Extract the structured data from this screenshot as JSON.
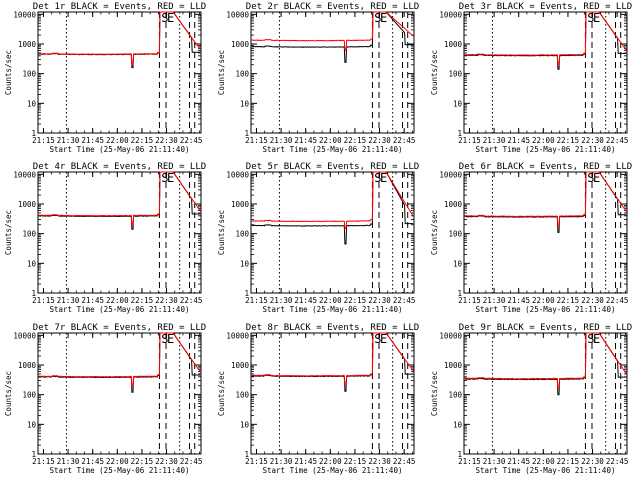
{
  "chart_data": [
    {
      "type": "line",
      "title": "Det 1r BLACK = Events, RED = LLD",
      "xlabel": "Start Time (25-May-06 21:11:40)",
      "ylabel": "Counts/sec",
      "x_ticks": [
        "21:15",
        "21:30",
        "21:45",
        "22:00",
        "22:15",
        "22:30",
        "22:45"
      ],
      "y_ticks": [
        "1",
        "10",
        "100",
        "1000",
        "10000"
      ],
      "xlim": [
        "21:11:40",
        "22:51:00"
      ],
      "ylim": [
        1,
        12000
      ],
      "y_scale": "log",
      "annotations": [
        "S",
        "E"
      ],
      "series": [
        {
          "color": "#000000",
          "level": 460,
          "dip": 160
        },
        {
          "color": "#ff0000",
          "level": 470,
          "dip": 200
        }
      ]
    },
    {
      "type": "line",
      "title": "Det 2r BLACK = Events, RED = LLD",
      "xlabel": "Start Time (25-May-06 21:11:40)",
      "ylabel": "Counts/sec",
      "x_ticks": [
        "21:15",
        "21:30",
        "21:45",
        "22:00",
        "22:15",
        "22:30",
        "22:45"
      ],
      "y_ticks": [
        "1",
        "10",
        "100",
        "1000",
        "10000"
      ],
      "xlim": [
        "21:11:40",
        "22:51:00"
      ],
      "ylim": [
        1,
        12000
      ],
      "y_scale": "log",
      "annotations": [
        "S",
        "E"
      ],
      "series": [
        {
          "color": "#000000",
          "level": 820,
          "dip": 240
        },
        {
          "color": "#ff0000",
          "level": 1350,
          "dip": 600
        }
      ]
    },
    {
      "type": "line",
      "title": "Det 3r BLACK = Events, RED = LLD",
      "xlabel": "Start Time (25-May-06 21:11:40)",
      "ylabel": "Counts/sec",
      "x_ticks": [
        "21:15",
        "21:30",
        "21:45",
        "22:00",
        "22:15",
        "22:30",
        "22:45"
      ],
      "y_ticks": [
        "1",
        "10",
        "100",
        "1000",
        "10000"
      ],
      "xlim": [
        "21:11:40",
        "22:51:00"
      ],
      "ylim": [
        1,
        12000
      ],
      "y_scale": "log",
      "annotations": [
        "S",
        "E"
      ],
      "series": [
        {
          "color": "#000000",
          "level": 420,
          "dip": 140
        },
        {
          "color": "#ff0000",
          "level": 440,
          "dip": 200
        }
      ]
    },
    {
      "type": "line",
      "title": "Det 4r BLACK = Events, RED = LLD",
      "xlabel": "Start Time (25-May-06 21:11:40)",
      "ylabel": "Counts/sec",
      "x_ticks": [
        "21:15",
        "21:30",
        "21:45",
        "22:00",
        "22:15",
        "22:30",
        "22:45"
      ],
      "y_ticks": [
        "1",
        "10",
        "100",
        "1000",
        "10000"
      ],
      "xlim": [
        "21:11:40",
        "22:51:00"
      ],
      "ylim": [
        1,
        12000
      ],
      "y_scale": "log",
      "annotations": [
        "S",
        "E"
      ],
      "series": [
        {
          "color": "#000000",
          "level": 400,
          "dip": 140
        },
        {
          "color": "#ff0000",
          "level": 420,
          "dip": 200
        }
      ]
    },
    {
      "type": "line",
      "title": "Det 5r BLACK = Events, RED = LLD",
      "xlabel": "Start Time (25-May-06 21:11:40)",
      "ylabel": "Counts/sec",
      "x_ticks": [
        "21:15",
        "21:30",
        "21:45",
        "22:00",
        "22:15",
        "22:30",
        "22:45"
      ],
      "y_ticks": [
        "1",
        "10",
        "100",
        "1000",
        "10000"
      ],
      "xlim": [
        "21:11:40",
        "22:51:00"
      ],
      "ylim": [
        1,
        12000
      ],
      "y_scale": "log",
      "annotations": [
        "S",
        "E"
      ],
      "series": [
        {
          "color": "#000000",
          "level": 190,
          "dip": 45
        },
        {
          "color": "#ff0000",
          "level": 270,
          "dip": 150
        }
      ]
    },
    {
      "type": "line",
      "title": "Det 6r BLACK = Events, RED = LLD",
      "xlabel": "Start Time (25-May-06 21:11:40)",
      "ylabel": "Counts/sec",
      "x_ticks": [
        "21:15",
        "21:30",
        "21:45",
        "22:00",
        "22:15",
        "22:30",
        "22:45"
      ],
      "y_ticks": [
        "1",
        "10",
        "100",
        "1000",
        "10000"
      ],
      "xlim": [
        "21:11:40",
        "22:51:00"
      ],
      "ylim": [
        1,
        12000
      ],
      "y_scale": "log",
      "annotations": [
        "S",
        "E"
      ],
      "series": [
        {
          "color": "#000000",
          "level": 380,
          "dip": 110
        },
        {
          "color": "#ff0000",
          "level": 400,
          "dip": 180
        }
      ]
    },
    {
      "type": "line",
      "title": "Det 7r BLACK = Events, RED = LLD",
      "xlabel": "Start Time (25-May-06 21:11:40)",
      "ylabel": "Counts/sec",
      "x_ticks": [
        "21:15",
        "21:30",
        "21:45",
        "22:00",
        "22:15",
        "22:30",
        "22:45"
      ],
      "y_ticks": [
        "1",
        "10",
        "100",
        "1000",
        "10000"
      ],
      "xlim": [
        "21:11:40",
        "22:51:00"
      ],
      "ylim": [
        1,
        12000
      ],
      "y_scale": "log",
      "annotations": [
        "S",
        "E"
      ],
      "series": [
        {
          "color": "#000000",
          "level": 400,
          "dip": 120
        },
        {
          "color": "#ff0000",
          "level": 420,
          "dip": 190
        }
      ]
    },
    {
      "type": "line",
      "title": "Det 8r BLACK = Events, RED = LLD",
      "xlabel": "Start Time (25-May-06 21:11:40)",
      "ylabel": "Counts/sec",
      "x_ticks": [
        "21:15",
        "21:30",
        "21:45",
        "22:00",
        "22:15",
        "22:30",
        "22:45"
      ],
      "y_ticks": [
        "1",
        "10",
        "100",
        "1000",
        "10000"
      ],
      "xlim": [
        "21:11:40",
        "22:51:00"
      ],
      "ylim": [
        1,
        12000
      ],
      "y_scale": "log",
      "annotations": [
        "S",
        "E"
      ],
      "series": [
        {
          "color": "#000000",
          "level": 430,
          "dip": 130
        },
        {
          "color": "#ff0000",
          "level": 450,
          "dip": 200
        }
      ]
    },
    {
      "type": "line",
      "title": "Det 9r BLACK = Events, RED = LLD",
      "xlabel": "Start Time (25-May-06 21:11:40)",
      "ylabel": "Counts/sec",
      "x_ticks": [
        "21:15",
        "21:30",
        "21:45",
        "22:00",
        "22:15",
        "22:30",
        "22:45"
      ],
      "y_ticks": [
        "1",
        "10",
        "100",
        "1000",
        "10000"
      ],
      "xlim": [
        "21:11:40",
        "22:51:00"
      ],
      "ylim": [
        1,
        12000
      ],
      "y_scale": "log",
      "annotations": [
        "S",
        "E"
      ],
      "series": [
        {
          "color": "#000000",
          "level": 340,
          "dip": 100
        },
        {
          "color": "#ff0000",
          "level": 360,
          "dip": 170
        }
      ]
    }
  ]
}
